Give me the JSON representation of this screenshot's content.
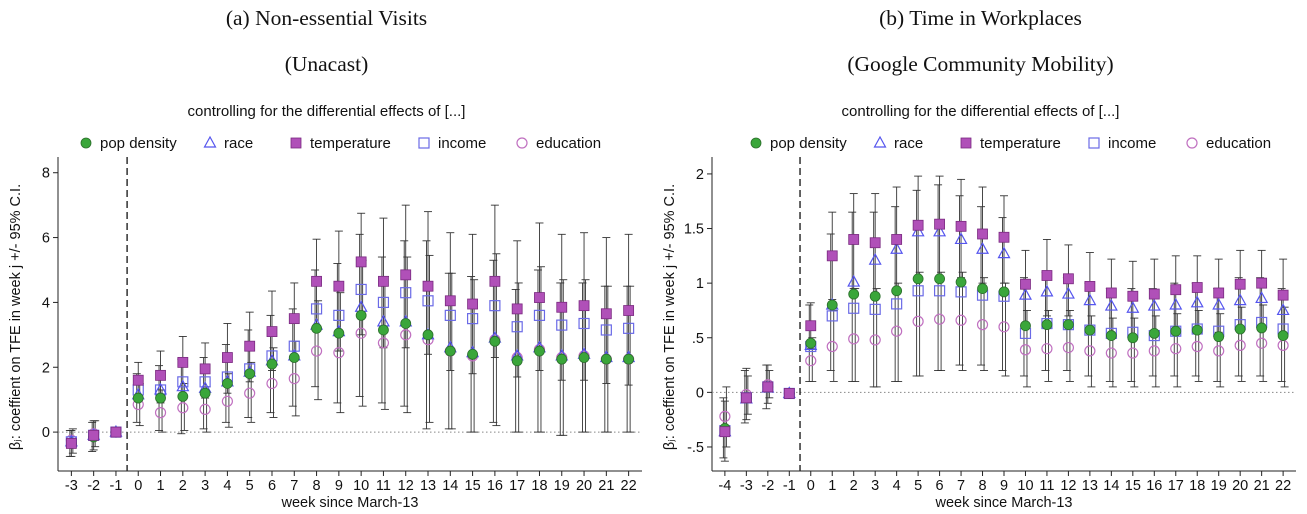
{
  "chart_data": [
    {
      "type": "scatter",
      "title": "(a) Non-essential Visits",
      "subtitle": "(Unacast)",
      "note": "controlling for the differential effects of [...]",
      "xlabel": "week since March-13",
      "ylabel": "βⱼ: coeffient on TFE in week j +/- 95% C.I.",
      "x": [
        -3,
        -2,
        -1,
        0,
        1,
        2,
        3,
        4,
        5,
        6,
        7,
        8,
        9,
        10,
        11,
        12,
        13,
        14,
        15,
        16,
        17,
        18,
        19,
        20,
        21,
        22
      ],
      "xlim": [
        -3.6,
        22.6
      ],
      "ylim": [
        -1.2,
        8.3
      ],
      "yticks": [
        0,
        2,
        4,
        6,
        8
      ],
      "yticklabels": [
        "0",
        "2",
        "4",
        "6",
        "8"
      ],
      "reference_line_x": -0.5,
      "zero_line": true,
      "grid": false,
      "legend": "top",
      "series": [
        {
          "name": "pop density",
          "marker": "circle",
          "color": "#3aa63a",
          "values": [
            -0.35,
            -0.15,
            0,
            1.05,
            1.05,
            1.1,
            1.2,
            1.5,
            1.8,
            2.1,
            2.3,
            3.2,
            3.05,
            3.6,
            3.15,
            3.35,
            3.0,
            2.5,
            2.4,
            2.8,
            2.2,
            2.5,
            2.25,
            2.3,
            2.25,
            2.25
          ],
          "ci": [
            [
              -0.75,
              0.05
            ],
            [
              -0.6,
              0.3
            ],
            [
              0,
              0
            ],
            [
              0.3,
              1.8
            ],
            [
              0.05,
              2.05
            ],
            [
              -0.05,
              2.25
            ],
            [
              0.1,
              2.3
            ],
            [
              0.3,
              2.7
            ],
            [
              0.45,
              3.15
            ],
            [
              0.6,
              3.6
            ],
            [
              0.8,
              3.8
            ],
            [
              1.4,
              5.0
            ],
            [
              0.9,
              5.2
            ],
            [
              1.1,
              6.1
            ],
            [
              0.9,
              5.4
            ],
            [
              0.8,
              5.9
            ],
            [
              0.1,
              5.9
            ],
            [
              0.1,
              4.9
            ],
            [
              0,
              4.8
            ],
            [
              0.3,
              5.3
            ],
            [
              0,
              4.4
            ],
            [
              0,
              5.0
            ],
            [
              -0.1,
              4.6
            ],
            [
              0,
              4.6
            ],
            [
              0,
              4.5
            ],
            [
              0,
              4.5
            ]
          ]
        },
        {
          "name": "race",
          "marker": "triangle",
          "color": "#5555ee",
          "values": [
            -0.3,
            -0.1,
            0,
            1.15,
            1.3,
            1.4,
            1.35,
            1.55,
            1.85,
            2.2,
            2.35,
            3.3,
            3.1,
            3.85,
            3.4,
            3.4,
            3.0,
            2.6,
            2.45,
            2.9,
            2.35,
            2.6,
            2.35,
            2.4,
            2.3,
            2.3
          ],
          "ci": null
        },
        {
          "name": "temperature",
          "marker": "square-filled",
          "color": "#b050b8",
          "values": [
            -0.35,
            -0.1,
            0,
            1.6,
            1.75,
            2.15,
            1.95,
            2.3,
            2.65,
            3.1,
            3.5,
            4.65,
            4.5,
            5.25,
            4.65,
            4.85,
            4.5,
            4.05,
            3.95,
            4.65,
            3.8,
            4.15,
            3.85,
            3.9,
            3.65,
            3.75
          ],
          "ci": [
            [
              -0.75,
              0.05
            ],
            [
              -0.55,
              0.35
            ],
            [
              0,
              0
            ],
            [
              1.0,
              2.15
            ],
            [
              0.9,
              2.5
            ],
            [
              1.2,
              2.95
            ],
            [
              1.05,
              2.75
            ],
            [
              1.2,
              3.35
            ],
            [
              1.55,
              3.7
            ],
            [
              1.9,
              4.35
            ],
            [
              2.25,
              4.6
            ],
            [
              3.1,
              5.95
            ],
            [
              2.5,
              6.2
            ],
            [
              3.0,
              6.75
            ],
            [
              2.6,
              6.6
            ],
            [
              2.6,
              7.0
            ],
            [
              2.4,
              6.8
            ],
            [
              1.9,
              6.15
            ],
            [
              1.8,
              6.1
            ],
            [
              2.3,
              7.0
            ],
            [
              1.7,
              5.9
            ],
            [
              1.9,
              6.45
            ],
            [
              1.6,
              6.1
            ],
            [
              1.6,
              6.15
            ],
            [
              1.5,
              6.0
            ],
            [
              1.45,
              6.1
            ]
          ]
        },
        {
          "name": "income",
          "marker": "square-hollow",
          "color": "#6a6ae6",
          "values": [
            -0.3,
            -0.1,
            0,
            1.3,
            1.3,
            1.55,
            1.55,
            1.7,
            1.95,
            2.35,
            2.65,
            3.8,
            3.6,
            4.4,
            4.0,
            4.3,
            4.05,
            3.6,
            3.5,
            3.9,
            3.25,
            3.6,
            3.3,
            3.35,
            3.15,
            3.2
          ],
          "ci": null
        },
        {
          "name": "education",
          "marker": "circle-hollow",
          "color": "#c070c0",
          "values": [
            -0.25,
            -0.05,
            0,
            0.85,
            0.6,
            0.75,
            0.7,
            0.95,
            1.2,
            1.5,
            1.65,
            2.5,
            2.45,
            3.05,
            2.75,
            3.0,
            2.85,
            2.5,
            2.35,
            2.85,
            2.3,
            2.55,
            2.3,
            2.35,
            2.25,
            2.25
          ],
          "ci": [
            [
              -0.65,
              0.1
            ],
            [
              -0.45,
              0.35
            ],
            [
              0,
              0
            ],
            [
              0.2,
              1.5
            ],
            [
              0,
              1.3
            ],
            [
              0.05,
              1.5
            ],
            [
              0,
              1.4
            ],
            [
              0.15,
              1.8
            ],
            [
              0.3,
              2.15
            ],
            [
              0.45,
              2.6
            ],
            [
              0.5,
              2.8
            ],
            [
              1.0,
              4.05
            ],
            [
              0.6,
              4.3
            ],
            [
              0.8,
              5.3
            ],
            [
              0.7,
              4.8
            ],
            [
              0.6,
              5.4
            ],
            [
              0.3,
              5.45
            ],
            [
              0.1,
              4.9
            ],
            [
              0,
              4.7
            ],
            [
              0.2,
              5.5
            ],
            [
              0,
              4.6
            ],
            [
              0,
              5.1
            ],
            [
              -0.1,
              4.7
            ],
            [
              0,
              4.7
            ],
            [
              0,
              4.5
            ],
            [
              0,
              4.5
            ]
          ]
        }
      ]
    },
    {
      "type": "scatter",
      "title": "(b) Time in Workplaces",
      "subtitle": "(Google Community Mobility)",
      "note": "controlling for the differential effects of [...]",
      "xlabel": "week since March-13",
      "ylabel": "βⱼ: coeffient on TFE in week j +/- 95% C.I.",
      "x": [
        -4,
        -3,
        -2,
        -1,
        0,
        1,
        2,
        3,
        4,
        5,
        6,
        7,
        8,
        9,
        10,
        11,
        12,
        13,
        14,
        15,
        16,
        17,
        18,
        19,
        20,
        21,
        22
      ],
      "xlim": [
        -4.6,
        22.6
      ],
      "ylim": [
        -0.72,
        2.1
      ],
      "yticks": [
        -0.5,
        0,
        0.5,
        1,
        1.5,
        2
      ],
      "yticklabels": [
        "-.5",
        "0",
        ".5",
        "1",
        "1.5",
        "2"
      ],
      "reference_line_x": -0.5,
      "zero_line": true,
      "grid": false,
      "legend": "top",
      "series": [
        {
          "name": "pop density",
          "marker": "circle",
          "color": "#3aa63a",
          "values": [
            -0.33,
            -0.05,
            0.05,
            -0.01,
            0.45,
            0.8,
            0.9,
            0.88,
            0.93,
            1.04,
            1.04,
            1.01,
            0.95,
            0.92,
            0.61,
            0.62,
            0.62,
            0.57,
            0.52,
            0.5,
            0.54,
            0.56,
            0.57,
            0.51,
            0.58,
            0.59,
            0.52
          ],
          "ci": [
            [
              -0.6,
              -0.05
            ],
            [
              -0.28,
              0.2
            ],
            [
              -0.15,
              0.25
            ],
            [
              -0.01,
              -0.01
            ],
            [
              0.1,
              0.8
            ],
            [
              0.2,
              1.45
            ],
            [
              0.1,
              1.65
            ],
            [
              0.05,
              1.65
            ],
            [
              0.1,
              1.7
            ],
            [
              0.15,
              1.85
            ],
            [
              0.2,
              1.9
            ],
            [
              0.25,
              1.8
            ],
            [
              0.25,
              1.7
            ],
            [
              0.2,
              1.6
            ],
            [
              0.15,
              1.05
            ],
            [
              0.2,
              1.1
            ],
            [
              0.2,
              1.05
            ],
            [
              0.15,
              1.0
            ],
            [
              0.1,
              0.95
            ],
            [
              0.1,
              0.95
            ],
            [
              0.15,
              0.95
            ],
            [
              0.15,
              1.0
            ],
            [
              0.15,
              1.0
            ],
            [
              0.1,
              0.95
            ],
            [
              0.15,
              1.05
            ],
            [
              0.15,
              1.05
            ],
            [
              0.1,
              0.95
            ]
          ]
        },
        {
          "name": "race",
          "marker": "triangle",
          "color": "#5555ee",
          "values": [
            -0.36,
            -0.06,
            0.04,
            -0.01,
            0.43,
            0.8,
            1.01,
            1.21,
            1.31,
            1.47,
            1.47,
            1.4,
            1.31,
            1.27,
            0.89,
            0.92,
            0.9,
            0.84,
            0.79,
            0.77,
            0.79,
            0.8,
            0.82,
            0.8,
            0.84,
            0.86,
            0.75
          ],
          "ci": null
        },
        {
          "name": "temperature",
          "marker": "square-filled",
          "color": "#b050b8",
          "values": [
            -0.36,
            -0.05,
            0.05,
            -0.01,
            0.61,
            1.25,
            1.4,
            1.37,
            1.4,
            1.53,
            1.54,
            1.52,
            1.45,
            1.42,
            0.99,
            1.07,
            1.04,
            0.97,
            0.91,
            0.88,
            0.9,
            0.94,
            0.96,
            0.91,
            0.99,
            1.0,
            0.89
          ],
          "ci": [
            [
              -0.63,
              -0.08
            ],
            [
              -0.25,
              0.22
            ],
            [
              -0.1,
              0.25
            ],
            [
              -0.01,
              -0.01
            ],
            [
              0.4,
              0.82
            ],
            [
              0.85,
              1.65
            ],
            [
              0.95,
              1.82
            ],
            [
              0.9,
              1.82
            ],
            [
              0.95,
              1.88
            ],
            [
              1.05,
              1.98
            ],
            [
              1.05,
              1.98
            ],
            [
              1.05,
              1.95
            ],
            [
              1.0,
              1.88
            ],
            [
              1.0,
              1.8
            ],
            [
              0.6,
              1.3
            ],
            [
              0.7,
              1.4
            ],
            [
              0.7,
              1.35
            ],
            [
              0.6,
              1.28
            ],
            [
              0.55,
              1.22
            ],
            [
              0.5,
              1.2
            ],
            [
              0.55,
              1.22
            ],
            [
              0.55,
              1.25
            ],
            [
              0.6,
              1.25
            ],
            [
              0.55,
              1.22
            ],
            [
              0.6,
              1.3
            ],
            [
              0.6,
              1.3
            ],
            [
              0.5,
              1.22
            ]
          ]
        },
        {
          "name": "income",
          "marker": "square-hollow",
          "color": "#6a6ae6",
          "values": [
            -0.35,
            -0.05,
            0.05,
            -0.01,
            0.42,
            0.7,
            0.77,
            0.76,
            0.81,
            0.93,
            0.93,
            0.92,
            0.89,
            0.88,
            0.54,
            0.63,
            0.62,
            0.57,
            0.54,
            0.55,
            0.52,
            0.56,
            0.58,
            0.56,
            0.62,
            0.64,
            0.58
          ],
          "ci": null
        },
        {
          "name": "education",
          "marker": "circle-hollow",
          "color": "#c070c0",
          "values": [
            -0.22,
            -0.02,
            0.07,
            -0.01,
            0.29,
            0.42,
            0.49,
            0.48,
            0.56,
            0.65,
            0.67,
            0.66,
            0.62,
            0.6,
            0.39,
            0.4,
            0.41,
            0.38,
            0.36,
            0.36,
            0.38,
            0.4,
            0.42,
            0.38,
            0.43,
            0.45,
            0.43
          ],
          "ci": [
            [
              -0.5,
              0.05
            ],
            [
              -0.2,
              0.15
            ],
            [
              -0.05,
              0.2
            ],
            [
              -0.01,
              -0.01
            ],
            [
              0.1,
              0.5
            ],
            [
              0.1,
              0.75
            ],
            [
              0.1,
              0.95
            ],
            [
              0.05,
              0.95
            ],
            [
              0.1,
              1.0
            ],
            [
              0.15,
              1.1
            ],
            [
              0.2,
              1.1
            ],
            [
              0.2,
              1.1
            ],
            [
              0.2,
              1.05
            ],
            [
              0.15,
              1.0
            ],
            [
              0.05,
              0.75
            ],
            [
              0.1,
              0.75
            ],
            [
              0.1,
              0.75
            ],
            [
              0.05,
              0.7
            ],
            [
              0.05,
              0.68
            ],
            [
              0.05,
              0.68
            ],
            [
              0.05,
              0.7
            ],
            [
              0.05,
              0.72
            ],
            [
              0.1,
              0.75
            ],
            [
              0.05,
              0.72
            ],
            [
              0.1,
              0.78
            ],
            [
              0.1,
              0.8
            ],
            [
              0.05,
              0.78
            ]
          ]
        }
      ]
    }
  ]
}
